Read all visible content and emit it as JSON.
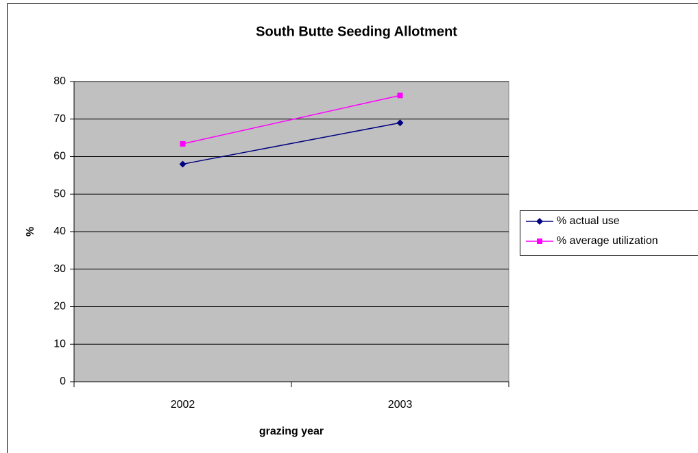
{
  "chart_data": {
    "type": "line",
    "title": "South Butte Seeding Allotment",
    "x_label": "grazing year",
    "y_label": "%",
    "categories": [
      "2002",
      "2003"
    ],
    "series": [
      {
        "name": "% actual use",
        "color": "#000080",
        "marker": "diamond",
        "values": [
          58,
          69
        ]
      },
      {
        "name": "% average utilization",
        "color": "#ff00ff",
        "marker": "square",
        "values": [
          63.4,
          76.3
        ]
      }
    ],
    "ylim": [
      0,
      80
    ],
    "yticks": [
      0,
      10,
      20,
      30,
      40,
      50,
      60,
      70,
      80
    ],
    "grid": true,
    "legend": "right"
  }
}
